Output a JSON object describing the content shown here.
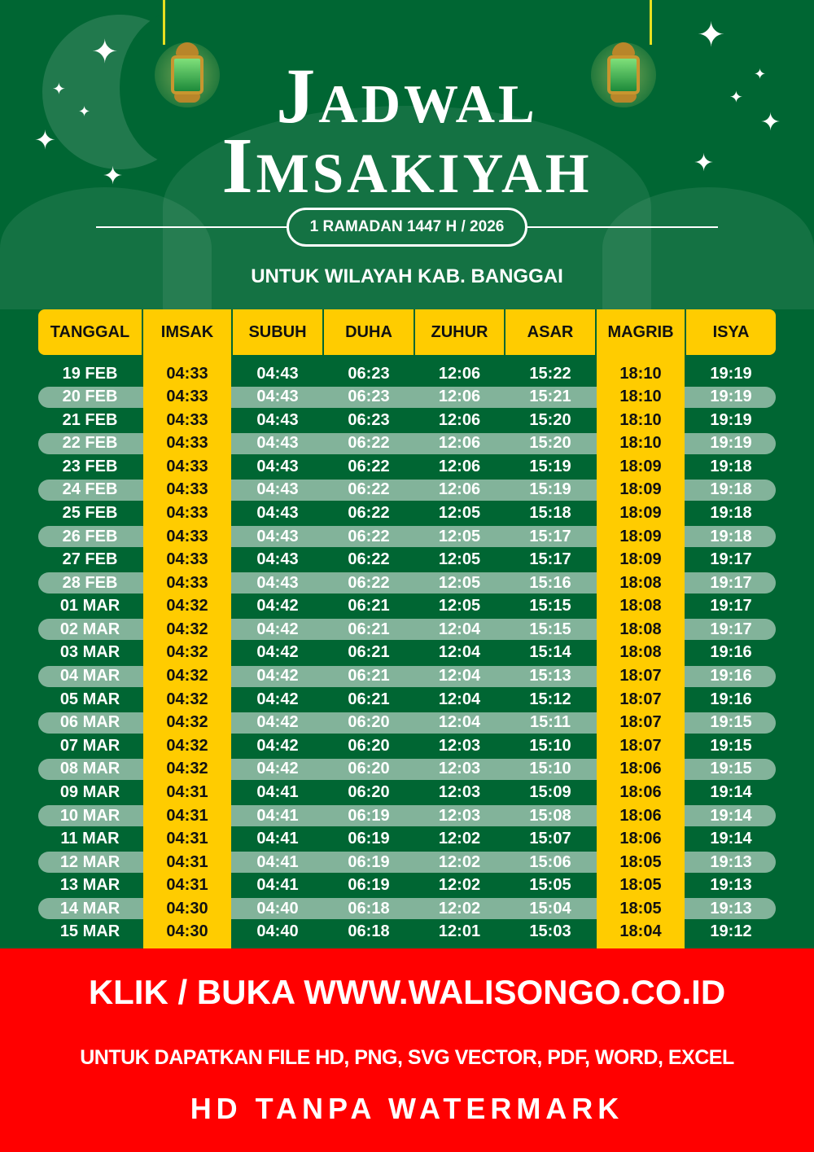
{
  "header": {
    "title_line1": "Jadwal",
    "title_line2": "Imsakiyah",
    "date_badge": "1 RAMADAN 1447 H / 2026",
    "region": "UNTUK WILAYAH KAB. BANGGAI"
  },
  "colors": {
    "green": "#006633",
    "yellow": "#ffcc00",
    "stripe": "#82b39a",
    "banner_red": "#ff0000"
  },
  "table": {
    "columns": [
      "TANGGAL",
      "IMSAK",
      "SUBUH",
      "DUHA",
      "ZUHUR",
      "ASAR",
      "MAGRIB",
      "ISYA"
    ],
    "rows": [
      [
        "19 FEB",
        "04:33",
        "04:43",
        "06:23",
        "12:06",
        "15:22",
        "18:10",
        "19:19"
      ],
      [
        "20 FEB",
        "04:33",
        "04:43",
        "06:23",
        "12:06",
        "15:21",
        "18:10",
        "19:19"
      ],
      [
        "21 FEB",
        "04:33",
        "04:43",
        "06:23",
        "12:06",
        "15:20",
        "18:10",
        "19:19"
      ],
      [
        "22 FEB",
        "04:33",
        "04:43",
        "06:22",
        "12:06",
        "15:20",
        "18:10",
        "19:19"
      ],
      [
        "23 FEB",
        "04:33",
        "04:43",
        "06:22",
        "12:06",
        "15:19",
        "18:09",
        "19:18"
      ],
      [
        "24 FEB",
        "04:33",
        "04:43",
        "06:22",
        "12:06",
        "15:19",
        "18:09",
        "19:18"
      ],
      [
        "25 FEB",
        "04:33",
        "04:43",
        "06:22",
        "12:05",
        "15:18",
        "18:09",
        "19:18"
      ],
      [
        "26 FEB",
        "04:33",
        "04:43",
        "06:22",
        "12:05",
        "15:17",
        "18:09",
        "19:18"
      ],
      [
        "27 FEB",
        "04:33",
        "04:43",
        "06:22",
        "12:05",
        "15:17",
        "18:09",
        "19:17"
      ],
      [
        "28 FEB",
        "04:33",
        "04:43",
        "06:22",
        "12:05",
        "15:16",
        "18:08",
        "19:17"
      ],
      [
        "01 MAR",
        "04:32",
        "04:42",
        "06:21",
        "12:05",
        "15:15",
        "18:08",
        "19:17"
      ],
      [
        "02 MAR",
        "04:32",
        "04:42",
        "06:21",
        "12:04",
        "15:15",
        "18:08",
        "19:17"
      ],
      [
        "03 MAR",
        "04:32",
        "04:42",
        "06:21",
        "12:04",
        "15:14",
        "18:08",
        "19:16"
      ],
      [
        "04 MAR",
        "04:32",
        "04:42",
        "06:21",
        "12:04",
        "15:13",
        "18:07",
        "19:16"
      ],
      [
        "05 MAR",
        "04:32",
        "04:42",
        "06:21",
        "12:04",
        "15:12",
        "18:07",
        "19:16"
      ],
      [
        "06 MAR",
        "04:32",
        "04:42",
        "06:20",
        "12:04",
        "15:11",
        "18:07",
        "19:15"
      ],
      [
        "07 MAR",
        "04:32",
        "04:42",
        "06:20",
        "12:03",
        "15:10",
        "18:07",
        "19:15"
      ],
      [
        "08 MAR",
        "04:32",
        "04:42",
        "06:20",
        "12:03",
        "15:10",
        "18:06",
        "19:15"
      ],
      [
        "09 MAR",
        "04:31",
        "04:41",
        "06:20",
        "12:03",
        "15:09",
        "18:06",
        "19:14"
      ],
      [
        "10 MAR",
        "04:31",
        "04:41",
        "06:19",
        "12:03",
        "15:08",
        "18:06",
        "19:14"
      ],
      [
        "11 MAR",
        "04:31",
        "04:41",
        "06:19",
        "12:02",
        "15:07",
        "18:06",
        "19:14"
      ],
      [
        "12 MAR",
        "04:31",
        "04:41",
        "06:19",
        "12:02",
        "15:06",
        "18:05",
        "19:13"
      ],
      [
        "13 MAR",
        "04:31",
        "04:41",
        "06:19",
        "12:02",
        "15:05",
        "18:05",
        "19:13"
      ],
      [
        "14 MAR",
        "04:30",
        "04:40",
        "06:18",
        "12:02",
        "15:04",
        "18:05",
        "19:13"
      ],
      [
        "15 MAR",
        "04:30",
        "04:40",
        "06:18",
        "12:01",
        "15:03",
        "18:04",
        "19:12"
      ]
    ]
  },
  "banner": {
    "line1": "KLIK / BUKA WWW.WALISONGO.CO.ID",
    "line2": "UNTUK DAPATKAN FILE HD, PNG, SVG VECTOR, PDF, WORD, EXCEL",
    "line3": "HD TANPA WATERMARK"
  }
}
